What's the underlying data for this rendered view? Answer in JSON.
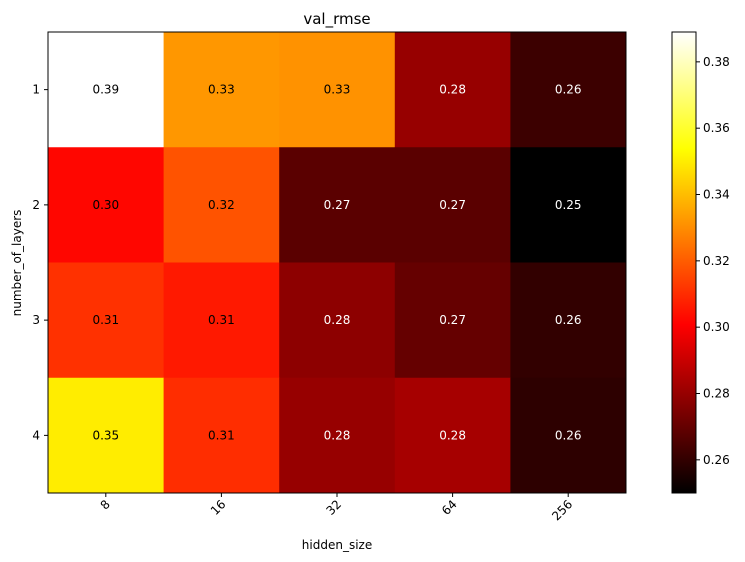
{
  "chart_data": {
    "type": "heatmap",
    "title": "val_rmse",
    "xlabel": "hidden_size",
    "ylabel": "number_of_layers",
    "x_categories": [
      "8",
      "16",
      "32",
      "64",
      "256"
    ],
    "y_categories": [
      "1",
      "2",
      "3",
      "4"
    ],
    "values": [
      [
        0.389,
        0.332,
        0.331,
        0.28,
        0.262
      ],
      [
        0.302,
        0.318,
        0.268,
        0.268,
        0.25
      ],
      [
        0.311,
        0.306,
        0.278,
        0.27,
        0.26
      ],
      [
        0.35,
        0.31,
        0.28,
        0.283,
        0.259
      ]
    ],
    "value_labels": [
      [
        "0.39",
        "0.33",
        "0.33",
        "0.28",
        "0.26"
      ],
      [
        "0.30",
        "0.32",
        "0.27",
        "0.27",
        "0.25"
      ],
      [
        "0.31",
        "0.31",
        "0.28",
        "0.27",
        "0.26"
      ],
      [
        "0.35",
        "0.31",
        "0.28",
        "0.28",
        "0.26"
      ]
    ],
    "colormap": "hot",
    "colorbar": {
      "range": [
        0.25,
        0.389
      ],
      "ticks": [
        0.26,
        0.28,
        0.3,
        0.32,
        0.34,
        0.36,
        0.38
      ],
      "tick_labels": [
        "0.26",
        "0.28",
        "0.30",
        "0.32",
        "0.34",
        "0.36",
        "0.38"
      ]
    },
    "grid": false,
    "x_tick_rotation": 45
  }
}
